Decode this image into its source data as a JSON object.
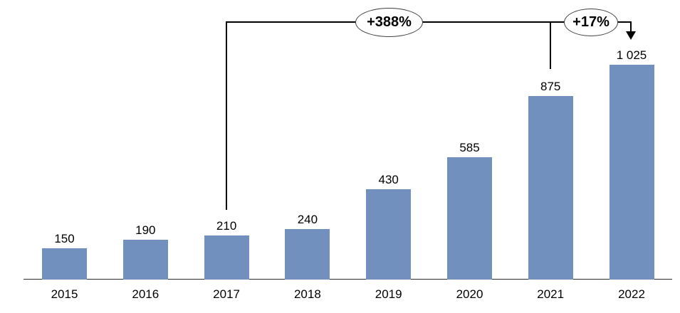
{
  "chart_data": {
    "type": "bar",
    "title": "",
    "xlabel": "",
    "ylabel": "",
    "categories": [
      "2015",
      "2016",
      "2017",
      "2018",
      "2019",
      "2020",
      "2021",
      "2022"
    ],
    "values": [
      150,
      190,
      210,
      240,
      430,
      585,
      875,
      1025
    ],
    "value_labels": [
      "150",
      "190",
      "210",
      "240",
      "430",
      "585",
      "875",
      "1 025"
    ],
    "ylim": [
      0,
      1100
    ],
    "grid": false,
    "legend": false,
    "bar_color": "#7190BE",
    "axis_color": "#2b2b2b",
    "annotation_line_color": "#000000",
    "annotations": [
      {
        "label": "+388%",
        "from_category": "2017",
        "to_category": "2022",
        "shape": "ellipse"
      },
      {
        "label": "+17%",
        "from_category": "2021",
        "to_category": "2022",
        "shape": "ellipse",
        "arrow": "down"
      }
    ]
  }
}
